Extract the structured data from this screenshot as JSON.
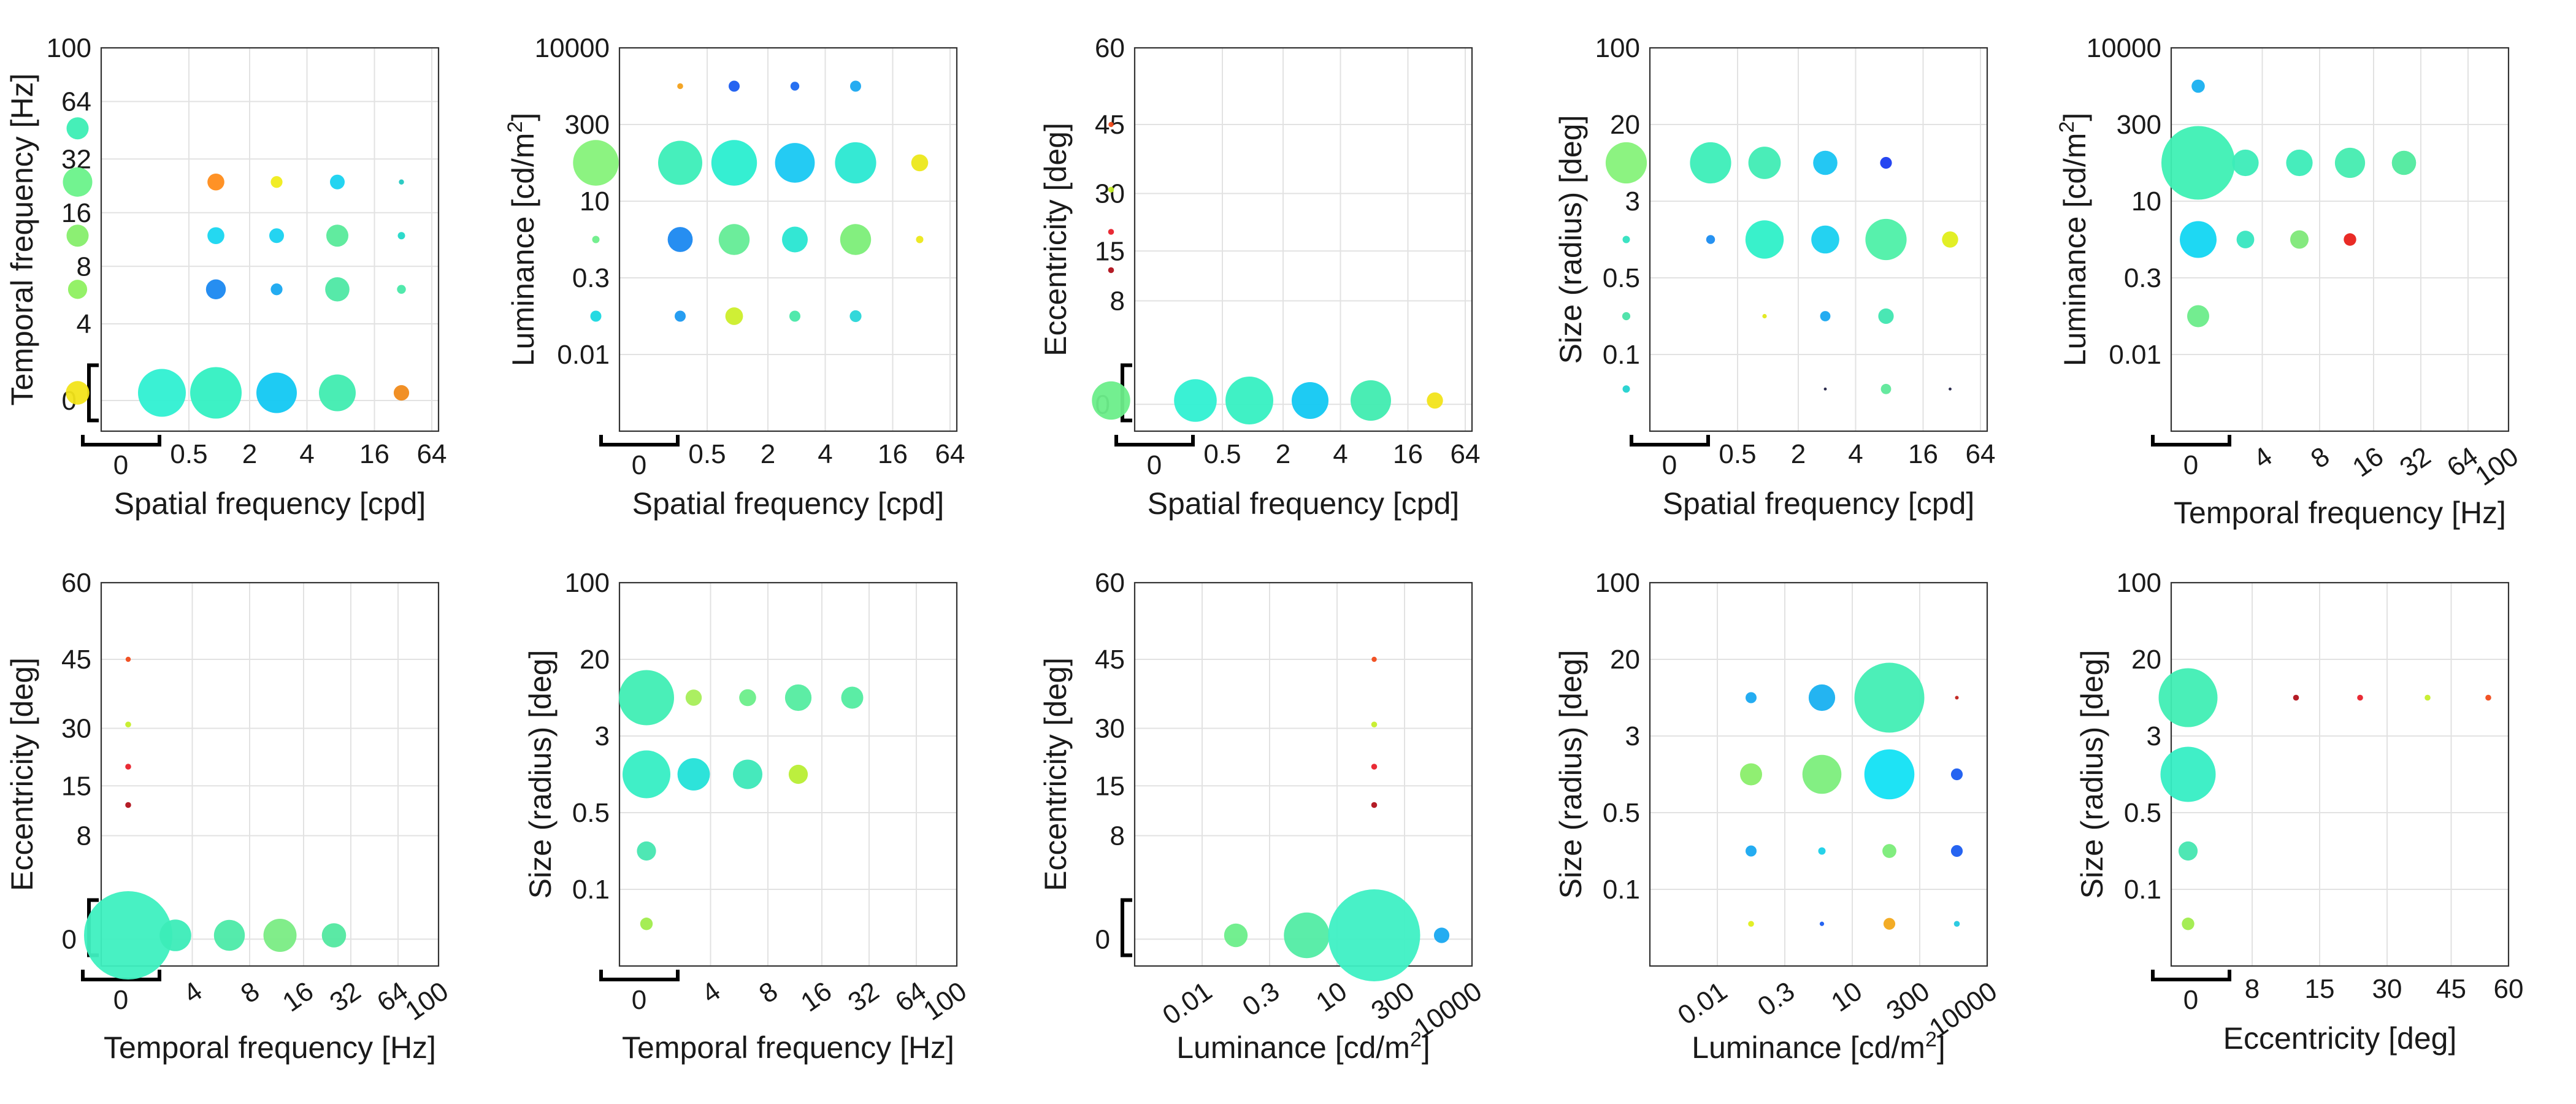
{
  "chart_data": [
    {
      "type": "scatter",
      "xlabel": "Spatial frequency [cpd]",
      "ylabel": "Temporal frequency [Hz]",
      "xticks": [
        "0.5",
        "2",
        "4",
        "16",
        "64"
      ],
      "yticks": [
        "0",
        "4",
        "8",
        "16",
        "32",
        "64",
        "100"
      ],
      "xzero": "0",
      "yzero": "0",
      "xrotate": false,
      "points": [
        {
          "x": "0",
          "y": "23",
          "size": 3,
          "color": "#3ceeb4"
        },
        {
          "x": "0",
          "y": "11",
          "size": 4,
          "color": "#6af28a"
        },
        {
          "x": "0",
          "y": "6",
          "size": 3,
          "color": "#86ee6c"
        },
        {
          "x": "0",
          "y": "3",
          "size": 2.6,
          "color": "#8ef060"
        },
        {
          "x": "0",
          "y": "0",
          "size": 3.2,
          "color": "#f2e41a"
        },
        {
          "x": "0.25",
          "y": "0",
          "size": 6.5,
          "color": "#2ff0d2"
        },
        {
          "x": "1",
          "y": "11",
          "size": 2.3,
          "color": "#ff8c1a"
        },
        {
          "x": "1",
          "y": "6",
          "size": 2.3,
          "color": "#18d6f0"
        },
        {
          "x": "1",
          "y": "3",
          "size": 2.7,
          "color": "#1a88f0"
        },
        {
          "x": "1",
          "y": "0",
          "size": 7,
          "color": "#33f0c2"
        },
        {
          "x": "3",
          "y": "11",
          "size": 1.6,
          "color": "#f0ec1a"
        },
        {
          "x": "3",
          "y": "6",
          "size": 2,
          "color": "#18d2f0"
        },
        {
          "x": "3",
          "y": "3",
          "size": 1.6,
          "color": "#18a8f0"
        },
        {
          "x": "3",
          "y": "0",
          "size": 5.5,
          "color": "#12c8f2"
        },
        {
          "x": "8",
          "y": "11",
          "size": 2,
          "color": "#18d2f0"
        },
        {
          "x": "8",
          "y": "6",
          "size": 3,
          "color": "#58ea9a"
        },
        {
          "x": "8",
          "y": "3",
          "size": 3.3,
          "color": "#4ee8a4"
        },
        {
          "x": "8",
          "y": "0",
          "size": 5,
          "color": "#40ecb0"
        },
        {
          "x": "32",
          "y": "11",
          "size": 0.7,
          "color": "#22c8c0"
        },
        {
          "x": "32",
          "y": "6",
          "size": 1,
          "color": "#22d8c8"
        },
        {
          "x": "32",
          "y": "3",
          "size": 1.2,
          "color": "#48e8a8"
        },
        {
          "x": "32",
          "y": "0",
          "size": 2.1,
          "color": "#f08a1a"
        }
      ]
    },
    {
      "type": "scatter",
      "xlabel": "Spatial frequency [cpd]",
      "ylabel": "Luminance [cd/m2]",
      "xticks": [
        "0.5",
        "2",
        "4",
        "16",
        "64"
      ],
      "yticks": [
        "0.01",
        "0.3",
        "10",
        "300",
        "10000"
      ],
      "xzero": "0",
      "yzero": "",
      "xrotate": false,
      "points": [
        {
          "x": "0",
          "y": "100",
          "size": 6.2,
          "color": "#86f27a"
        },
        {
          "x": "0",
          "y": "3",
          "size": 1,
          "color": "#6eee8a"
        },
        {
          "x": "0",
          "y": "0.08",
          "size": 1.5,
          "color": "#1ad8e0"
        },
        {
          "x": "0.25",
          "y": "3000",
          "size": 0.8,
          "color": "#f2a01a"
        },
        {
          "x": "0.25",
          "y": "100",
          "size": 6,
          "color": "#3ceeb8"
        },
        {
          "x": "0.25",
          "y": "3",
          "size": 3.4,
          "color": "#1a88f0"
        },
        {
          "x": "0.25",
          "y": "0.08",
          "size": 1.5,
          "color": "#1a98f0"
        },
        {
          "x": "1",
          "y": "3000",
          "size": 1.5,
          "color": "#1a5cf0"
        },
        {
          "x": "1",
          "y": "100",
          "size": 6.2,
          "color": "#2aeed0"
        },
        {
          "x": "1",
          "y": "3",
          "size": 4.2,
          "color": "#64ec96"
        },
        {
          "x": "1",
          "y": "0.08",
          "size": 2.4,
          "color": "#ccee2a"
        },
        {
          "x": "3",
          "y": "3000",
          "size": 1.2,
          "color": "#1a68f0"
        },
        {
          "x": "3",
          "y": "100",
          "size": 5.4,
          "color": "#18c8f2"
        },
        {
          "x": "3",
          "y": "3",
          "size": 3.5,
          "color": "#28e6d2"
        },
        {
          "x": "3",
          "y": "0.08",
          "size": 1.5,
          "color": "#48e8a8"
        },
        {
          "x": "8",
          "y": "3000",
          "size": 1.5,
          "color": "#1aa8f0"
        },
        {
          "x": "8",
          "y": "100",
          "size": 5.6,
          "color": "#2ae8d2"
        },
        {
          "x": "8",
          "y": "3",
          "size": 4.2,
          "color": "#7cee78"
        },
        {
          "x": "8",
          "y": "0.08",
          "size": 1.6,
          "color": "#28d6d8"
        },
        {
          "x": "32",
          "y": "100",
          "size": 2.3,
          "color": "#ece81a"
        },
        {
          "x": "32",
          "y": "3",
          "size": 1,
          "color": "#ece81a"
        }
      ]
    },
    {
      "type": "scatter",
      "xlabel": "Spatial frequency [cpd]",
      "ylabel": "Eccentricity [deg]",
      "xticks": [
        "0.5",
        "2",
        "4",
        "16",
        "64"
      ],
      "yticks": [
        "0",
        "8",
        "15",
        "30",
        "45",
        "60"
      ],
      "xzero": "0",
      "yzero": "0",
      "xrotate": false,
      "points": [
        {
          "x": "0",
          "y": "52",
          "size": 0.7,
          "color": "#f04a1a"
        },
        {
          "x": "0",
          "y": "38",
          "size": 0.8,
          "color": "#c6ee2a"
        },
        {
          "x": "0",
          "y": "22",
          "size": 0.8,
          "color": "#e8202a"
        },
        {
          "x": "0",
          "y": "11",
          "size": 0.8,
          "color": "#b0101a"
        },
        {
          "x": "0",
          "y": "0",
          "size": 5.2,
          "color": "#6cee8a"
        },
        {
          "x": "0.25",
          "y": "0",
          "size": 5.8,
          "color": "#2ff0d2"
        },
        {
          "x": "1",
          "y": "0",
          "size": 6.5,
          "color": "#36f0c2"
        },
        {
          "x": "3",
          "y": "0",
          "size": 5,
          "color": "#12c8f2"
        },
        {
          "x": "8",
          "y": "0",
          "size": 5.5,
          "color": "#40ecb0"
        },
        {
          "x": "32",
          "y": "0",
          "size": 2.2,
          "color": "#f2e41a"
        }
      ]
    },
    {
      "type": "scatter",
      "xlabel": "Spatial frequency [cpd]",
      "ylabel": "Size (radius) [deg]",
      "xticks": [
        "0.5",
        "2",
        "4",
        "16",
        "64"
      ],
      "yticks": [
        "0.1",
        "0.5",
        "3",
        "20",
        "100"
      ],
      "xzero": "0",
      "yzero": "",
      "xrotate": false,
      "points": [
        {
          "x": "0",
          "y": "10",
          "size": 5.6,
          "color": "#86f27a"
        },
        {
          "x": "0",
          "y": "1.2",
          "size": 1,
          "color": "#30e2c0"
        },
        {
          "x": "0",
          "y": "0.25",
          "size": 1.1,
          "color": "#4ae2a8"
        },
        {
          "x": "0",
          "y": "0.05",
          "size": 1,
          "color": "#22d2d0"
        },
        {
          "x": "0.25",
          "y": "10",
          "size": 5.6,
          "color": "#3ceeb8"
        },
        {
          "x": "0.25",
          "y": "1.2",
          "size": 1.2,
          "color": "#1a8cf0"
        },
        {
          "x": "1",
          "y": "10",
          "size": 4.4,
          "color": "#40ecb4"
        },
        {
          "x": "1",
          "y": "1.2",
          "size": 5.2,
          "color": "#2ef0c8"
        },
        {
          "x": "1",
          "y": "0.25",
          "size": 0.6,
          "color": "#e0e81a"
        },
        {
          "x": "3",
          "y": "10",
          "size": 3.3,
          "color": "#18c4f2"
        },
        {
          "x": "3",
          "y": "1.2",
          "size": 3.8,
          "color": "#18d0f0"
        },
        {
          "x": "3",
          "y": "0.25",
          "size": 1.4,
          "color": "#18a8f0"
        },
        {
          "x": "3",
          "y": "0.05",
          "size": 0.4,
          "color": "#222244"
        },
        {
          "x": "8",
          "y": "10",
          "size": 1.6,
          "color": "#1a3cf0"
        },
        {
          "x": "8",
          "y": "1.2",
          "size": 5.6,
          "color": "#4ef0a8"
        },
        {
          "x": "8",
          "y": "0.25",
          "size": 2.1,
          "color": "#40e6b0"
        },
        {
          "x": "8",
          "y": "0.05",
          "size": 1.4,
          "color": "#5ee89a"
        },
        {
          "x": "32",
          "y": "1.2",
          "size": 2.2,
          "color": "#e0ee1a"
        },
        {
          "x": "32",
          "y": "0.05",
          "size": 0.4,
          "color": "#222244"
        }
      ]
    },
    {
      "type": "scatter",
      "xlabel": "Temporal frequency [Hz]",
      "ylabel": "Luminance [cd/m2]",
      "xticks": [
        "4",
        "8",
        "16",
        "32",
        "64",
        "100"
      ],
      "yticks": [
        "0.01",
        "0.3",
        "10",
        "300",
        "10000"
      ],
      "xzero": "0",
      "yzero": "",
      "xrotate": true,
      "points": [
        {
          "x": "0",
          "y": "3000",
          "size": 1.8,
          "color": "#18b0f0"
        },
        {
          "x": "0",
          "y": "100",
          "size": 10,
          "color": "#3ef0b4"
        },
        {
          "x": "0",
          "y": "3",
          "size": 5,
          "color": "#12d6f2"
        },
        {
          "x": "0",
          "y": "0.08",
          "size": 3,
          "color": "#6cec8a"
        },
        {
          "x": "2",
          "y": "100",
          "size": 3.6,
          "color": "#3cecb8"
        },
        {
          "x": "2",
          "y": "3",
          "size": 2.4,
          "color": "#36e6c0"
        },
        {
          "x": "6",
          "y": "100",
          "size": 3.6,
          "color": "#3cecb8"
        },
        {
          "x": "6",
          "y": "3",
          "size": 2.5,
          "color": "#7ee878"
        },
        {
          "x": "12",
          "y": "100",
          "size": 4.1,
          "color": "#44ecb0"
        },
        {
          "x": "12",
          "y": "3",
          "size": 1.7,
          "color": "#e8201a"
        },
        {
          "x": "25",
          "y": "100",
          "size": 3.3,
          "color": "#50ea9e"
        }
      ]
    },
    {
      "type": "scatter",
      "xlabel": "Temporal frequency [Hz]",
      "ylabel": "Eccentricity [deg]",
      "xticks": [
        "4",
        "8",
        "16",
        "32",
        "64",
        "100"
      ],
      "yticks": [
        "0",
        "8",
        "15",
        "30",
        "45",
        "60"
      ],
      "xzero": "0",
      "yzero": "0",
      "xrotate": true,
      "points": [
        {
          "x": "0",
          "y": "52",
          "size": 0.7,
          "color": "#f04a1a"
        },
        {
          "x": "0",
          "y": "38",
          "size": 0.8,
          "color": "#c6ee2a"
        },
        {
          "x": "0",
          "y": "22",
          "size": 0.8,
          "color": "#e8202a"
        },
        {
          "x": "0",
          "y": "11",
          "size": 0.8,
          "color": "#b0101a"
        },
        {
          "x": "0",
          "y": "0",
          "size": 12,
          "color": "#3ef0c0"
        },
        {
          "x": "2",
          "y": "0",
          "size": 4.3,
          "color": "#3cecb8"
        },
        {
          "x": "6",
          "y": "0",
          "size": 4.2,
          "color": "#4ceaa8"
        },
        {
          "x": "12",
          "y": "0",
          "size": 4.5,
          "color": "#7aec84"
        },
        {
          "x": "25",
          "y": "0",
          "size": 3.3,
          "color": "#52e8a0"
        }
      ]
    },
    {
      "type": "scatter",
      "xlabel": "Temporal frequency [Hz]",
      "ylabel": "Size (radius) [deg]",
      "xticks": [
        "4",
        "8",
        "16",
        "32",
        "64",
        "100"
      ],
      "yticks": [
        "0.1",
        "0.5",
        "3",
        "20",
        "100"
      ],
      "xzero": "0",
      "yzero": "",
      "xrotate": true,
      "points": [
        {
          "x": "0",
          "y": "8",
          "size": 7.5,
          "color": "#40eeb4"
        },
        {
          "x": "0",
          "y": "1.5",
          "size": 6.5,
          "color": "#36eec4"
        },
        {
          "x": "0",
          "y": "0.2",
          "size": 2.6,
          "color": "#46e6b0"
        },
        {
          "x": "0",
          "y": "0.04",
          "size": 1.7,
          "color": "#a0ec4c"
        },
        {
          "x": "2",
          "y": "8",
          "size": 2.2,
          "color": "#a6ee58"
        },
        {
          "x": "2",
          "y": "1.5",
          "size": 4.4,
          "color": "#22e2d8"
        },
        {
          "x": "6",
          "y": "8",
          "size": 2.3,
          "color": "#6cee8a"
        },
        {
          "x": "6",
          "y": "1.5",
          "size": 4,
          "color": "#3ce8b8"
        },
        {
          "x": "12",
          "y": "8",
          "size": 3.6,
          "color": "#54eca0"
        },
        {
          "x": "12",
          "y": "1.5",
          "size": 2.6,
          "color": "#b8ee34"
        },
        {
          "x": "25",
          "y": "8",
          "size": 3,
          "color": "#52eca0"
        }
      ]
    },
    {
      "type": "scatter",
      "xlabel": "Luminance [cd/m2]",
      "ylabel": "Eccentricity [deg]",
      "xticks": [
        "0.01",
        "0.3",
        "10",
        "300",
        "10000"
      ],
      "yticks": [
        "0",
        "8",
        "15",
        "30",
        "45",
        "60"
      ],
      "xzero": "",
      "yzero": "0",
      "xrotate": true,
      "points": [
        {
          "x": "0.08",
          "y": "0",
          "size": 3.2,
          "color": "#6cee8a"
        },
        {
          "x": "3",
          "y": "0",
          "size": 6.2,
          "color": "#52eca4"
        },
        {
          "x": "100",
          "y": "52",
          "size": 0.7,
          "color": "#f04a1a"
        },
        {
          "x": "100",
          "y": "38",
          "size": 0.8,
          "color": "#c6ee2a"
        },
        {
          "x": "100",
          "y": "22",
          "size": 0.8,
          "color": "#e8202a"
        },
        {
          "x": "100",
          "y": "11",
          "size": 0.8,
          "color": "#b0101a"
        },
        {
          "x": "100",
          "y": "0",
          "size": 12.5,
          "color": "#3ef0c4"
        },
        {
          "x": "3000",
          "y": "0",
          "size": 2.1,
          "color": "#18a8f0"
        }
      ]
    },
    {
      "type": "scatter",
      "xlabel": "Luminance [cd/m2]",
      "ylabel": "Size (radius) [deg]",
      "xticks": [
        "0.01",
        "0.3",
        "10",
        "300",
        "10000"
      ],
      "yticks": [
        "0.1",
        "0.5",
        "3",
        "20",
        "100"
      ],
      "xzero": "",
      "yzero": "",
      "xrotate": true,
      "points": [
        {
          "x": "0.08",
          "y": "8",
          "size": 1.5,
          "color": "#18a8f0"
        },
        {
          "x": "0.08",
          "y": "1.5",
          "size": 3,
          "color": "#8aee6a"
        },
        {
          "x": "0.08",
          "y": "0.2",
          "size": 1.5,
          "color": "#18a8f0"
        },
        {
          "x": "0.08",
          "y": "0.04",
          "size": 0.8,
          "color": "#e0ee1a"
        },
        {
          "x": "3",
          "y": "8",
          "size": 3.6,
          "color": "#18b0f0"
        },
        {
          "x": "3",
          "y": "1.5",
          "size": 5.3,
          "color": "#7cee7c"
        },
        {
          "x": "3",
          "y": "0.2",
          "size": 1,
          "color": "#1ad0e8"
        },
        {
          "x": "3",
          "y": "0.04",
          "size": 0.6,
          "color": "#1a5cf0"
        },
        {
          "x": "100",
          "y": "8",
          "size": 9.5,
          "color": "#42eeb4"
        },
        {
          "x": "100",
          "y": "1.5",
          "size": 6.8,
          "color": "#12e2f4"
        },
        {
          "x": "100",
          "y": "0.2",
          "size": 1.9,
          "color": "#7aec78"
        },
        {
          "x": "100",
          "y": "0.04",
          "size": 1.6,
          "color": "#f2a81a"
        },
        {
          "x": "3000",
          "y": "8",
          "size": 0.5,
          "color": "#c0201a"
        },
        {
          "x": "3000",
          "y": "1.5",
          "size": 1.6,
          "color": "#1a5cf0"
        },
        {
          "x": "3000",
          "y": "0.2",
          "size": 1.6,
          "color": "#1a5cf0"
        },
        {
          "x": "3000",
          "y": "0.04",
          "size": 0.8,
          "color": "#22c8e0"
        }
      ]
    },
    {
      "type": "scatter",
      "xlabel": "Eccentricity [deg]",
      "ylabel": "Size (radius) [deg]",
      "xticks": [
        "8",
        "15",
        "30",
        "45",
        "60"
      ],
      "yticks": [
        "0.1",
        "0.5",
        "3",
        "20",
        "100"
      ],
      "xzero": "0",
      "yzero": "",
      "xrotate": false,
      "points": [
        {
          "x": "0",
          "y": "8",
          "size": 8,
          "color": "#40eeb4"
        },
        {
          "x": "0",
          "y": "1.5",
          "size": 7.5,
          "color": "#36eec4"
        },
        {
          "x": "0",
          "y": "0.2",
          "size": 2.6,
          "color": "#46e6b0"
        },
        {
          "x": "0",
          "y": "0.04",
          "size": 1.7,
          "color": "#a0ec4c"
        },
        {
          "x": "11",
          "y": "8",
          "size": 0.8,
          "color": "#b0101a"
        },
        {
          "x": "22",
          "y": "8",
          "size": 0.8,
          "color": "#e8202a"
        },
        {
          "x": "38",
          "y": "8",
          "size": 0.8,
          "color": "#c6ee2a"
        },
        {
          "x": "52",
          "y": "8",
          "size": 0.8,
          "color": "#f04a1a"
        }
      ]
    }
  ]
}
